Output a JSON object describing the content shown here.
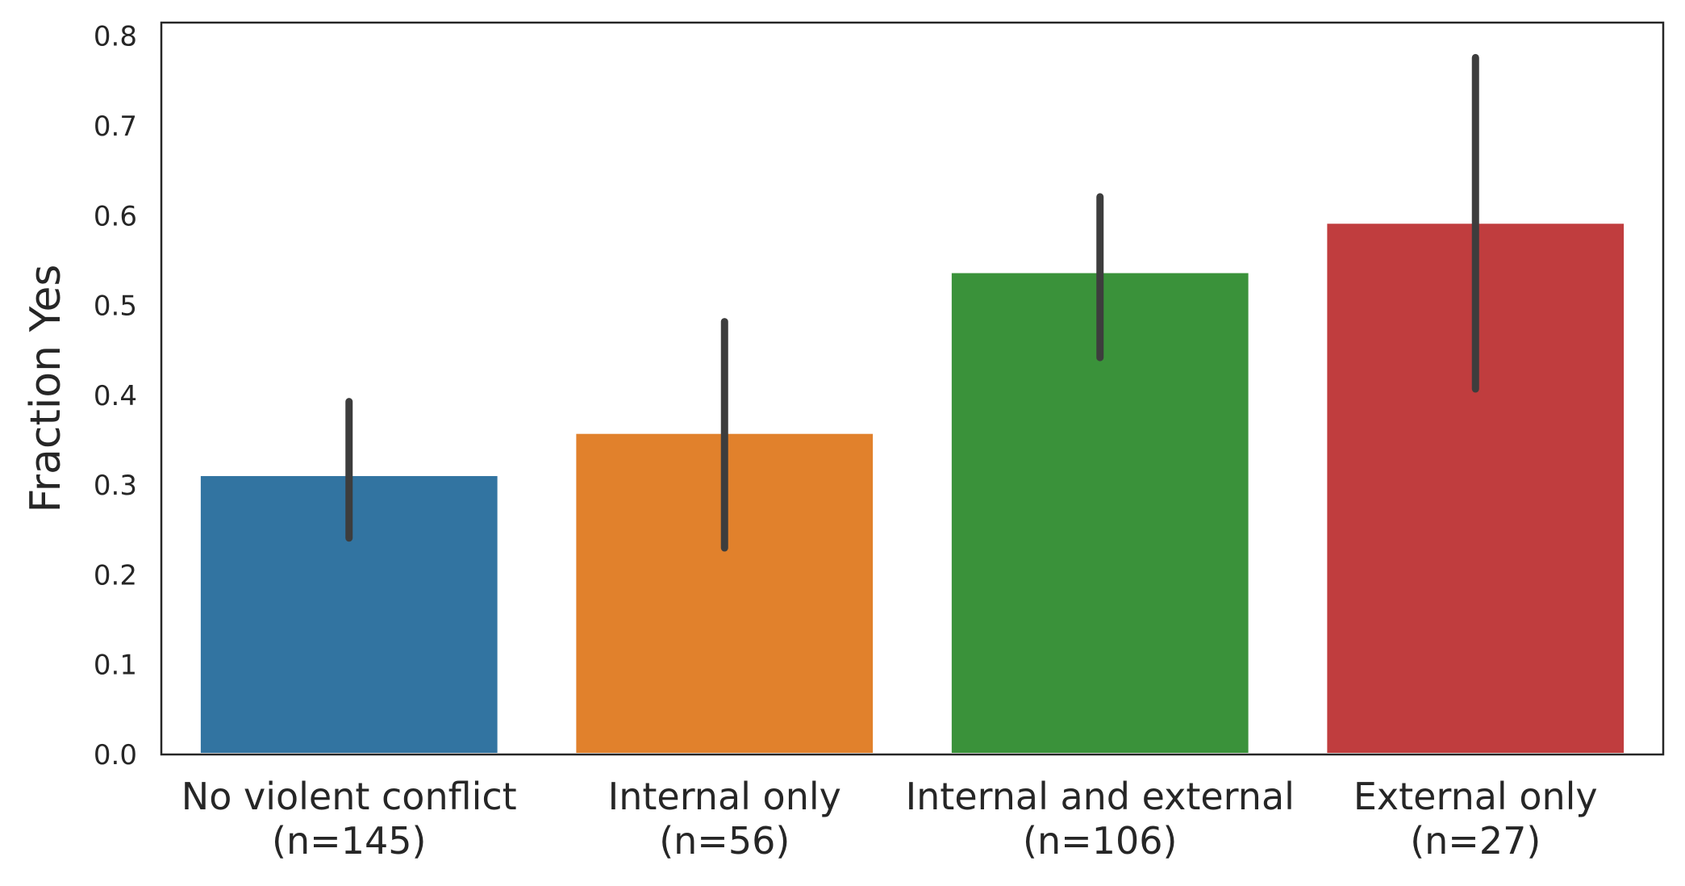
{
  "chart_data": {
    "type": "bar",
    "title": "",
    "xlabel": "",
    "ylabel": "Fraction Yes",
    "ylim": [
      0,
      0.815
    ],
    "yticks": [
      "0.0",
      "0.1",
      "0.2",
      "0.3",
      "0.4",
      "0.5",
      "0.6",
      "0.7",
      "0.8"
    ],
    "grid": false,
    "legend": "none",
    "categories": [
      {
        "line1": "No violent conflict",
        "line2": "(n=145)"
      },
      {
        "line1": "Internal only",
        "line2": "(n=56)"
      },
      {
        "line1": "Internal and external",
        "line2": "(n=106)"
      },
      {
        "line1": "External only",
        "line2": "(n=27)"
      }
    ],
    "values": [
      0.31,
      0.357,
      0.536,
      0.591
    ],
    "error_low": [
      0.241,
      0.23,
      0.442,
      0.407
    ],
    "error_high": [
      0.393,
      0.482,
      0.621,
      0.776
    ],
    "colors": [
      "#3274a1",
      "#e1812c",
      "#3a923a",
      "#c03d3e"
    ],
    "error_color": "#3d3d3d",
    "axis_color": "#262626"
  }
}
